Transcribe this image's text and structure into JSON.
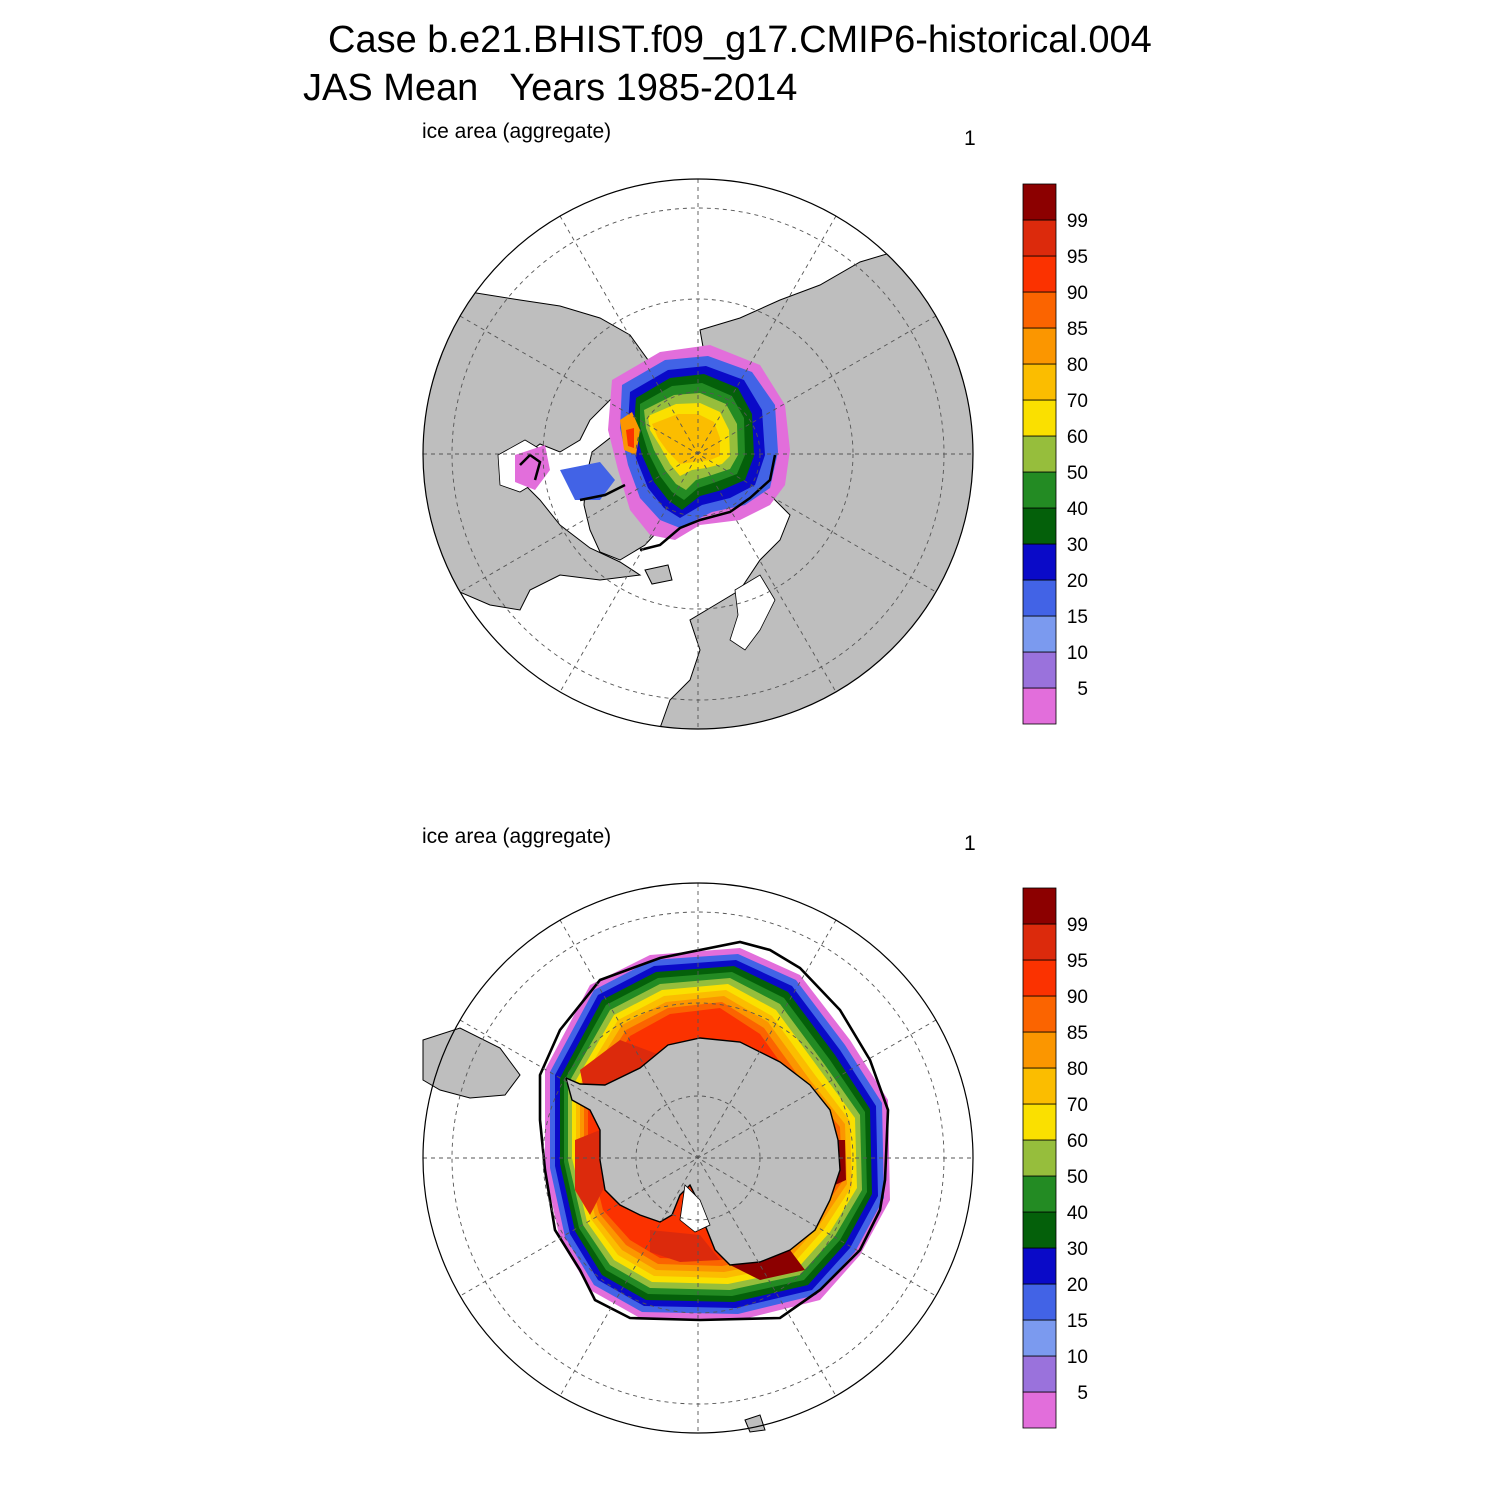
{
  "title": {
    "line1": "Case b.e21.BHIST.f09_g17.CMIP6-historical.004",
    "season": "JAS Mean",
    "years": "Years 1985-2014"
  },
  "panels": [
    {
      "id": "north",
      "label": "ice area  (aggregate)",
      "number": "1",
      "hemisphere": "Arctic (north polar stereographic)"
    },
    {
      "id": "south",
      "label": "ice area  (aggregate)",
      "number": "1",
      "hemisphere": "Antarctic (south polar stereographic)"
    }
  ],
  "colorbar": {
    "levels": [
      "5",
      "10",
      "15",
      "20",
      "30",
      "40",
      "50",
      "60",
      "70",
      "80",
      "85",
      "90",
      "95",
      "99"
    ],
    "colors": [
      "#e26edb",
      "#9a72dc",
      "#7b9aef",
      "#4263e6",
      "#0a0ac8",
      "#04600a",
      "#238b23",
      "#96be3c",
      "#fae000",
      "#fbbd00",
      "#fb9600",
      "#fb6400",
      "#fb3200",
      "#dc2a0c",
      "#8c0000"
    ]
  },
  "map_colors": {
    "land": "#bebebe",
    "ocean": "#ffffff",
    "contour": "#000000"
  }
}
